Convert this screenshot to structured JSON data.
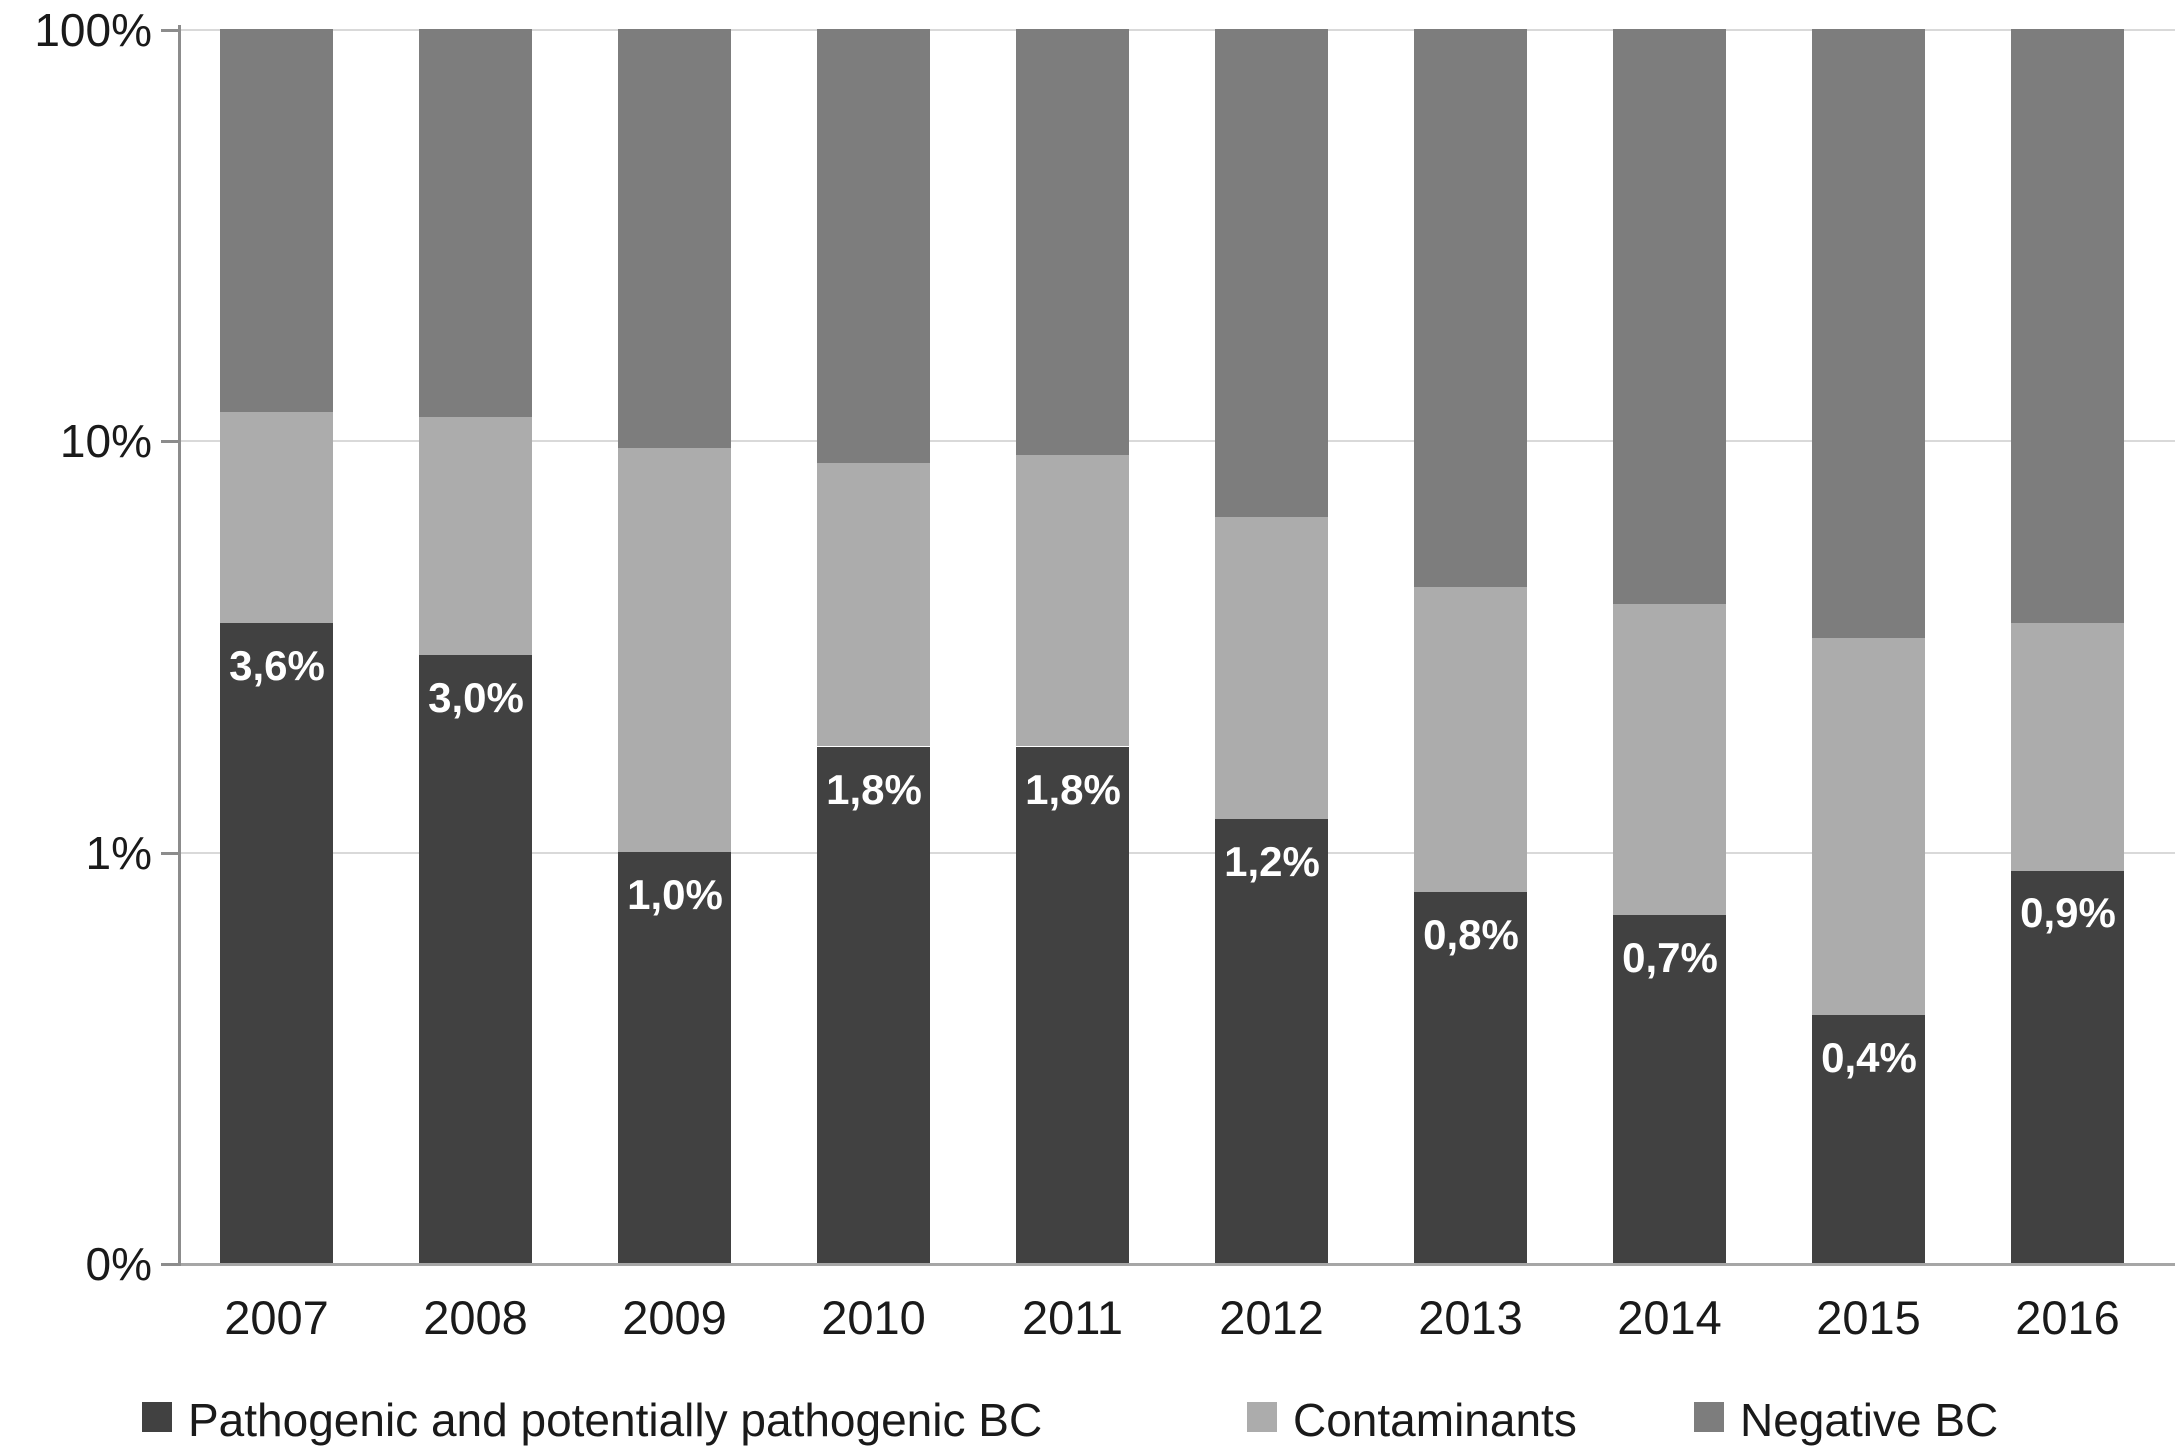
{
  "chart_data": {
    "type": "bar",
    "subtype": "stacked",
    "y_scale": "log",
    "title": "",
    "xlabel": "",
    "ylabel": "",
    "grid": true,
    "legend_position": "bottom",
    "categories": [
      "2007",
      "2008",
      "2009",
      "2010",
      "2011",
      "2012",
      "2013",
      "2014",
      "2015",
      "2016"
    ],
    "series": [
      {
        "name": "Pathogenic and potentially pathogenic BC",
        "color": "#414141",
        "values": [
          3.6,
          3.0,
          1.0,
          1.8,
          1.8,
          1.2,
          0.8,
          0.7,
          0.4,
          0.9
        ],
        "data_labels": [
          "3,6%",
          "3,0%",
          "1,0%",
          "1,8%",
          "1,8%",
          "1,2%",
          "0,8%",
          "0,7%",
          "0,4%",
          "0,9%"
        ],
        "data_label_color": "#ffffff"
      },
      {
        "name": "Contaminants",
        "color": "#acacac",
        "values": [
          8.1,
          8.4,
          8.6,
          7.0,
          7.4,
          5.3,
          3.6,
          3.3,
          2.9,
          2.7
        ],
        "data_labels": null
      },
      {
        "name": "Negative BC",
        "color": "#7d7d7d",
        "values": [
          88.3,
          88.6,
          90.4,
          91.2,
          90.8,
          93.5,
          95.6,
          96.0,
          96.7,
          96.4
        ],
        "data_labels": null
      }
    ],
    "stack_total": 100,
    "y_axis": {
      "tick_labels": [
        "100%",
        "10%",
        "1%",
        "0%"
      ],
      "tick_values": [
        100,
        10,
        1,
        0.1
      ],
      "min": 0.1,
      "max": 100
    }
  }
}
